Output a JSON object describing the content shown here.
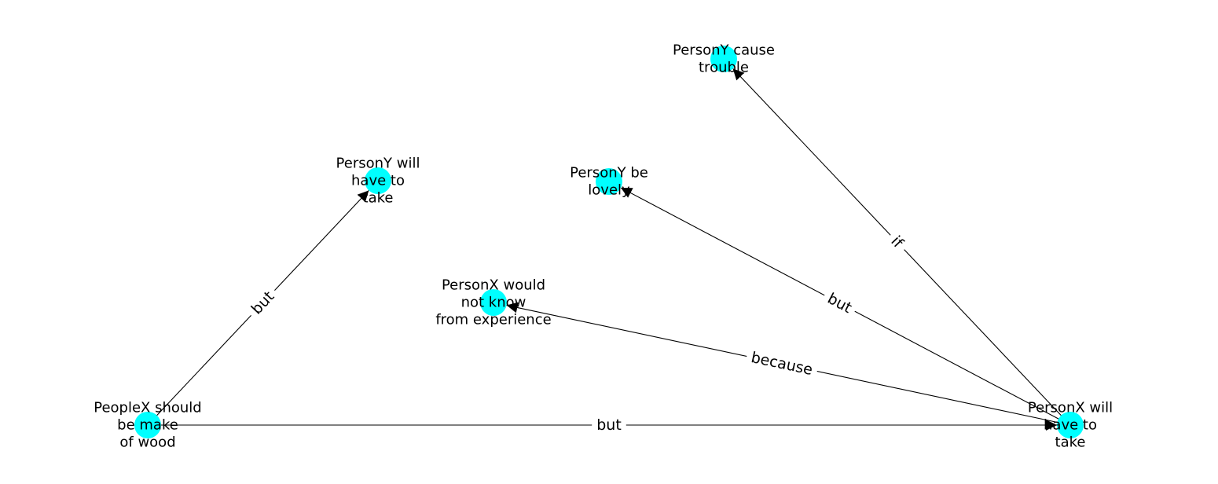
{
  "graph": {
    "node_color": "#00ffff",
    "edge_color": "#000000",
    "label_color": "#000000",
    "nodes": [
      {
        "id": "n1",
        "label_lines": [
          "PeopleX should",
          "be make",
          "of wood"
        ]
      },
      {
        "id": "n2",
        "label_lines": [
          "PersonY will",
          "have to",
          "take"
        ]
      },
      {
        "id": "n3",
        "label_lines": [
          "PersonX will",
          "have to",
          "take"
        ]
      },
      {
        "id": "n4",
        "label_lines": [
          "PersonX would",
          "not know",
          "from experience"
        ]
      },
      {
        "id": "n5",
        "label_lines": [
          "PersonY be",
          "lovely"
        ]
      },
      {
        "id": "n6",
        "label_lines": [
          "PersonY cause",
          "trouble"
        ]
      }
    ],
    "edges": [
      {
        "from": "n1",
        "to": "n2",
        "label": "but"
      },
      {
        "from": "n1",
        "to": "n3",
        "label": "but"
      },
      {
        "from": "n3",
        "to": "n4",
        "label": "because"
      },
      {
        "from": "n3",
        "to": "n5",
        "label": "but"
      },
      {
        "from": "n3",
        "to": "n6",
        "label": "if"
      }
    ]
  }
}
